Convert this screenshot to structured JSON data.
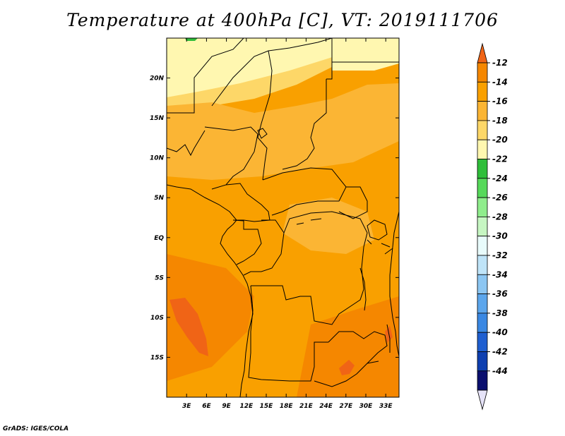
{
  "title": "Temperature at 400hPa [C], VT: 2019111706",
  "credit": "GrADS: IGES/COLA",
  "map": {
    "lon_range": [
      0,
      35
    ],
    "lat_range": [
      -20,
      25
    ],
    "lon_ticks": [
      "3E",
      "6E",
      "9E",
      "12E",
      "15E",
      "18E",
      "21E",
      "24E",
      "27E",
      "30E",
      "33E"
    ],
    "lon_tick_values": [
      3,
      6,
      9,
      12,
      15,
      18,
      21,
      24,
      27,
      30,
      33
    ],
    "lat_ticks": [
      "20N",
      "15N",
      "10N",
      "5N",
      "EQ",
      "5S",
      "10S",
      "15S"
    ],
    "lat_tick_values": [
      20,
      15,
      10,
      5,
      0,
      -5,
      -10,
      -15
    ]
  },
  "colorbar": {
    "labels": [
      "-12",
      "-14",
      "-16",
      "-18",
      "-20",
      "-22",
      "-24",
      "-26",
      "-28",
      "-30",
      "-32",
      "-34",
      "-36",
      "-38",
      "-40",
      "-42",
      "-44"
    ],
    "colors": [
      "#f06416",
      "#f58700",
      "#f9a000",
      "#fbb534",
      "#fdd768",
      "#fff7b0",
      "#2fbe3a",
      "#56d95a",
      "#8fed8c",
      "#c6f6c2",
      "#e8fbfb",
      "#bfe4f8",
      "#8cc6f2",
      "#5ca6ec",
      "#3a88e3",
      "#1f5fd0",
      "#0e3fb0",
      "#0a0f6e",
      "#e6e3f8"
    ]
  },
  "field_colors": {
    "t14": "#f06416",
    "t16": "#f58700",
    "t18": "#f9a000",
    "t20": "#fbb534",
    "t22": "#fdd768",
    "t24": "#fff7b0"
  }
}
